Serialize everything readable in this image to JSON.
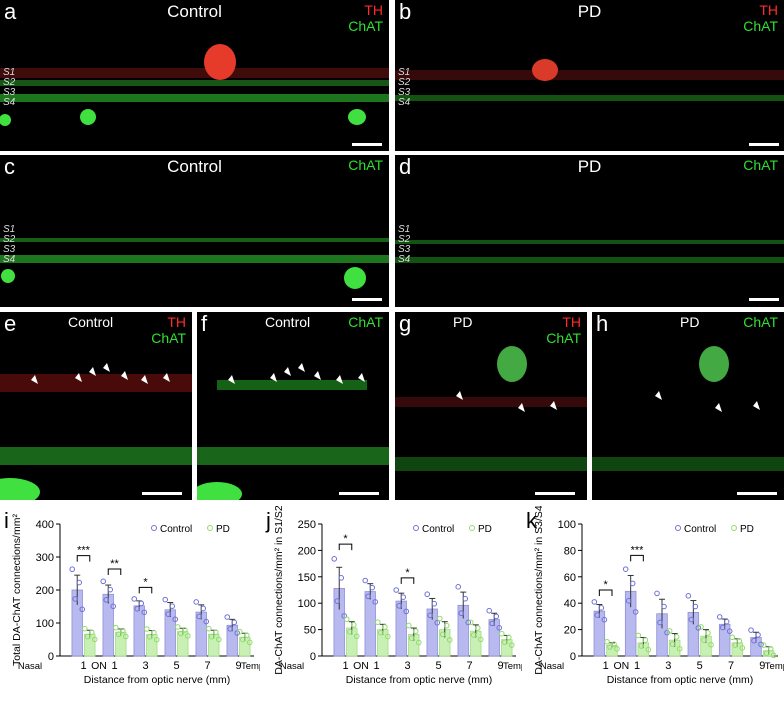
{
  "panels": {
    "a": {
      "letter": "a",
      "title": "Control",
      "ch1": "TH",
      "ch2": "ChAT",
      "layers": [
        "S1",
        "S2",
        "S3",
        "S4"
      ]
    },
    "b": {
      "letter": "b",
      "title": "PD",
      "ch1": "TH",
      "ch2": "ChAT",
      "layers": [
        "S1",
        "S2",
        "S3",
        "S4"
      ]
    },
    "c": {
      "letter": "c",
      "title": "Control",
      "ch2": "ChAT",
      "layers": [
        "S1",
        "S2",
        "S3",
        "S4"
      ]
    },
    "d": {
      "letter": "d",
      "title": "PD",
      "ch2": "ChAT",
      "layers": [
        "S1",
        "S2",
        "S3",
        "S4"
      ]
    },
    "e": {
      "letter": "e",
      "title": "Control",
      "ch1": "TH",
      "ch2": "ChAT"
    },
    "f": {
      "letter": "f",
      "title": "Control",
      "ch2": "ChAT"
    },
    "g": {
      "letter": "g",
      "title": "PD",
      "ch1": "TH",
      "ch2": "ChAT"
    },
    "h": {
      "letter": "h",
      "title": "PD",
      "ch2": "ChAT"
    }
  },
  "colors": {
    "control": "#b8b9ee",
    "control_dot": "#7072d6",
    "pd": "#c9f0b4",
    "pd_dot": "#8fdc6a"
  },
  "chart_data": [
    {
      "letter": "i",
      "type": "bar",
      "ylabel": "Total DA-ChAT connections/mm²",
      "xlabel": "Distance from optic nerve (mm)",
      "ylim": [
        0,
        400
      ],
      "yticks": [
        0,
        100,
        200,
        300,
        400
      ],
      "categories": [
        "1",
        "1",
        "3",
        "5",
        "7",
        "9"
      ],
      "xlabels_left": "Nasal",
      "xlabels_mid": "ON",
      "xlabels_right": "Temporal",
      "legend": [
        "Control",
        "PD"
      ],
      "series": [
        {
          "name": "Control",
          "values": [
            200,
            187,
            152,
            140,
            133,
            93
          ],
          "err": [
            45,
            28,
            15,
            22,
            22,
            18
          ]
        },
        {
          "name": "PD",
          "values": [
            66,
            72,
            65,
            74,
            66,
            57
          ],
          "err": [
            12,
            10,
            12,
            10,
            12,
            12
          ]
        }
      ],
      "sig": [
        {
          "pos": 0,
          "label": "***"
        },
        {
          "pos": 1,
          "label": "**"
        },
        {
          "pos": 2,
          "label": "*"
        }
      ]
    },
    {
      "letter": "j",
      "type": "bar",
      "ylabel": "DA-ChAT connections/mm² in S1/S2",
      "xlabel": "Distance from optic nerve (mm)",
      "ylim": [
        0,
        250
      ],
      "yticks": [
        0,
        50,
        100,
        150,
        200,
        250
      ],
      "categories": [
        "1",
        "1",
        "3",
        "5",
        "7",
        "9"
      ],
      "xlabels_left": "Nasal",
      "xlabels_mid": "ON",
      "xlabels_right": "Temporal",
      "legend": [
        "Control",
        "PD"
      ],
      "series": [
        {
          "name": "Control",
          "values": [
            128,
            122,
            104,
            89,
            96,
            69
          ],
          "err": [
            40,
            15,
            15,
            20,
            25,
            12
          ]
        },
        {
          "name": "PD",
          "values": [
            53,
            50,
            41,
            50,
            47,
            31
          ],
          "err": [
            12,
            10,
            12,
            15,
            12,
            8
          ]
        }
      ],
      "sig": [
        {
          "pos": 0,
          "label": "*"
        },
        {
          "pos": 2,
          "label": "*"
        }
      ]
    },
    {
      "letter": "k",
      "type": "bar",
      "ylabel": "DA-ChAT connections/mm² in S3/S4",
      "xlabel": "Distance from optic nerve (mm)",
      "ylim": [
        0,
        100
      ],
      "yticks": [
        0,
        20,
        40,
        60,
        80,
        100
      ],
      "categories": [
        "1",
        "1",
        "3",
        "5",
        "7",
        "9"
      ],
      "xlabels_left": "Nasal",
      "xlabels_mid": "ON",
      "xlabels_right": "Temporal",
      "legend": [
        "Control",
        "PD"
      ],
      "series": [
        {
          "name": "Control",
          "values": [
            34,
            49,
            32,
            33,
            24,
            14
          ],
          "err": [
            5,
            12,
            11,
            9,
            4,
            4
          ]
        },
        {
          "name": "PD",
          "values": [
            8,
            10,
            12,
            15,
            10,
            4
          ],
          "err": [
            2,
            4,
            5,
            5,
            3,
            3
          ]
        }
      ],
      "sig": [
        {
          "pos": 0,
          "label": "*"
        },
        {
          "pos": 1,
          "label": "***"
        }
      ]
    }
  ]
}
